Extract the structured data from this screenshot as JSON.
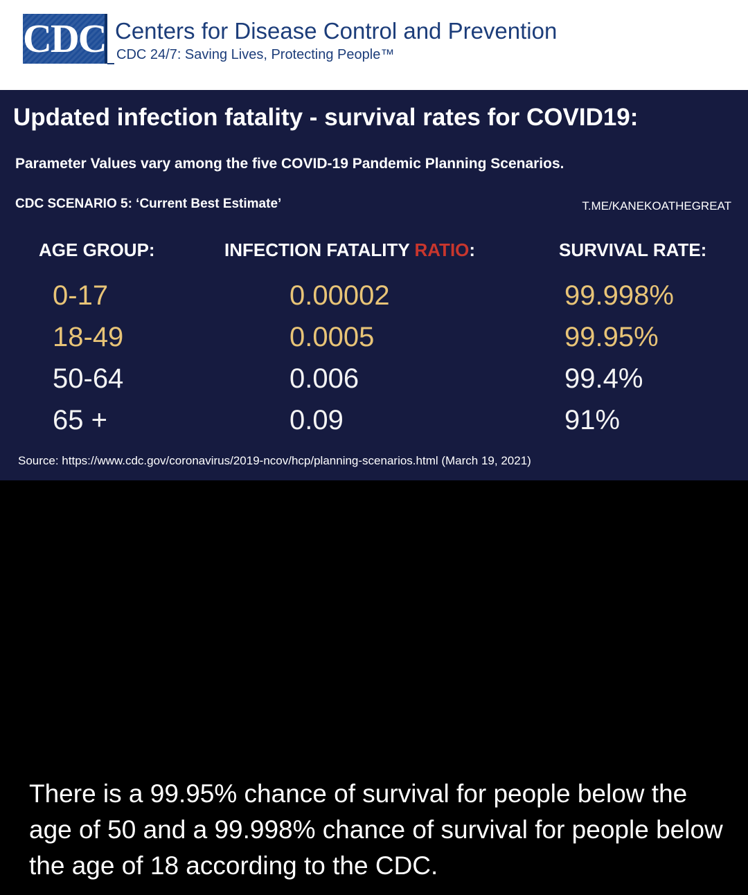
{
  "cdc_header": {
    "logo_text": "CDC",
    "org_name": "Centers for Disease Control and Prevention",
    "tagline": "CDC 24/7: Saving Lives, Protecting People™"
  },
  "panel": {
    "title": "Updated infection fatality - survival rates for COVID19:",
    "subtitle": "Parameter Values vary among the five COVID-19 Pandemic Planning Scenarios.",
    "scenario": "CDC SCENARIO 5: ‘Current Best Estimate’",
    "watermark": "T.ME/KANEKOATHEGREAT",
    "headers": {
      "age_group": "AGE GROUP:",
      "ifr_prefix": "INFECTION FATALITY ",
      "ifr_accent": "RATIO",
      "ifr_suffix": ":",
      "survival_rate": "SURVIVAL RATE:"
    },
    "rows": [
      {
        "age": "0-17",
        "ifr": "0.00002",
        "survival": "99.998%"
      },
      {
        "age": "18-49",
        "ifr": "0.0005",
        "survival": "99.95%"
      },
      {
        "age": "50-64",
        "ifr": "0.006",
        "survival": "99.4%"
      },
      {
        "age": "65 +",
        "ifr": "0.09",
        "survival": "91%"
      }
    ],
    "source": "Source: https://www.cdc.gov/coronavirus/2019-ncov/hcp/planning-scenarios.html (March 19, 2021)"
  },
  "caption": "There is a 99.95% chance of survival for people below the age of 50 and a 99.998% chance of survival for people below the age of 18 according to the CDC.",
  "colors": {
    "panel_background": "#161b40",
    "highlight_values": "#e8c477",
    "ratio_accent": "#c8362d",
    "cdc_blue": "#1f4e98"
  }
}
